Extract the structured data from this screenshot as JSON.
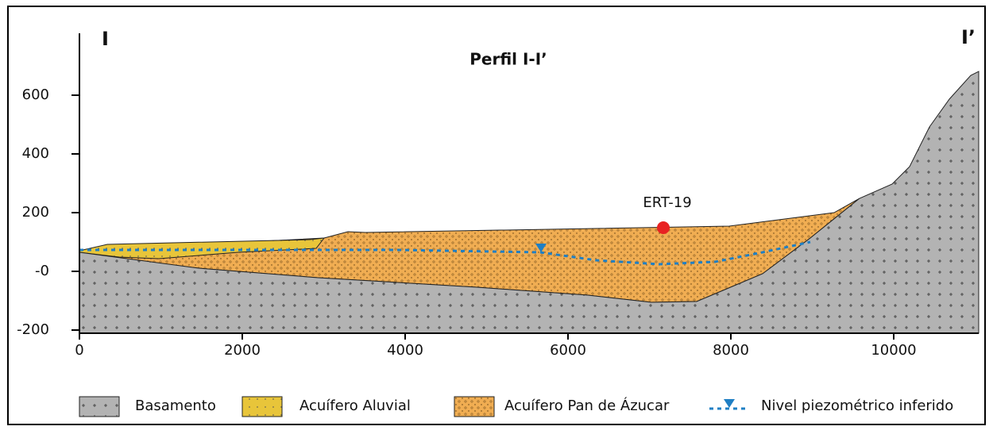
{
  "title": "Perfil I-I’",
  "left_label": "I",
  "right_label": "I’",
  "annotation": "ERT-19",
  "y_ticks": [
    "600",
    "400",
    "200",
    "-0",
    "-200"
  ],
  "x_ticks": [
    "0",
    "2000",
    "4000",
    "6000",
    "8000",
    "10000"
  ],
  "legend": [
    "Basamento",
    "Acuífero Aluvial",
    "Acuífero Pan de Ázucar",
    "Nivel piezométrico inferido"
  ]
}
